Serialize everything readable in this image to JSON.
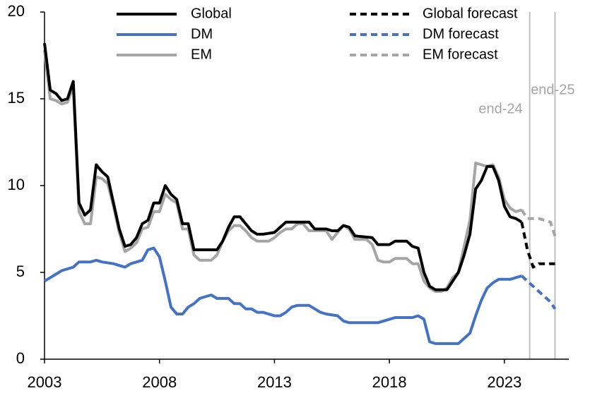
{
  "chart_data": {
    "type": "line",
    "xlim": [
      2003,
      2025.8
    ],
    "ylim": [
      0,
      20
    ],
    "xticks": [
      2003,
      2008,
      2013,
      2018,
      2023
    ],
    "yticks": [
      0,
      5,
      10,
      15,
      20
    ],
    "grid": false,
    "legend": "top",
    "series": [
      {
        "name": "Global",
        "color": "#000000",
        "style": "solid",
        "x": [
          2003,
          2003.25,
          2003.5,
          2003.75,
          2004,
          2004.25,
          2004.5,
          2004.75,
          2005,
          2005.25,
          2005.5,
          2005.75,
          2006,
          2006.25,
          2006.5,
          2006.75,
          2007,
          2007.25,
          2007.5,
          2007.75,
          2008,
          2008.25,
          2008.5,
          2008.75,
          2009,
          2009.25,
          2009.5,
          2010,
          2010.5,
          2010.75,
          2011,
          2011.25,
          2011.5,
          2011.75,
          2012,
          2012.25,
          2012.5,
          2013,
          2013.25,
          2013.5,
          2014,
          2014.5,
          2014.75,
          2015.25,
          2015.5,
          2015.75,
          2016,
          2016.25,
          2016.5,
          2017.25,
          2017.5,
          2018,
          2018.25,
          2018.75,
          2019,
          2019.25,
          2019.5,
          2019.75,
          2020,
          2020.5,
          2020.75,
          2021,
          2021.25,
          2021.5,
          2021.75,
          2022,
          2022.25,
          2022.5,
          2022.75,
          2023,
          2023.25,
          2023.5,
          2023.75
        ],
        "values": [
          18.2,
          15.5,
          15.3,
          14.9,
          15.0,
          16.0,
          9.0,
          8.3,
          8.6,
          11.2,
          10.8,
          10.5,
          9.0,
          7.5,
          6.5,
          6.6,
          7.0,
          7.8,
          8.0,
          9.0,
          9.0,
          10.0,
          9.5,
          9.2,
          7.8,
          7.8,
          6.3,
          6.3,
          6.3,
          6.8,
          7.6,
          8.2,
          8.2,
          7.8,
          7.4,
          7.2,
          7.2,
          7.3,
          7.6,
          7.9,
          7.9,
          7.9,
          7.5,
          7.5,
          7.4,
          7.4,
          7.7,
          7.6,
          7.1,
          7.0,
          6.6,
          6.6,
          6.8,
          6.8,
          6.5,
          6.4,
          5.0,
          4.2,
          4.0,
          4.0,
          4.5,
          5.0,
          6.0,
          7.2,
          9.8,
          10.3,
          11.1,
          11.1,
          10.3,
          8.8,
          8.2,
          8.1,
          7.9
        ]
      },
      {
        "name": "DM",
        "color": "#4472c4",
        "style": "solid",
        "x": [
          2003,
          2003.25,
          2003.5,
          2003.75,
          2004.25,
          2004.5,
          2005,
          2005.25,
          2005.5,
          2006,
          2006.25,
          2006.5,
          2006.75,
          2007.25,
          2007.5,
          2007.75,
          2008,
          2008.25,
          2008.5,
          2008.75,
          2009,
          2009.25,
          2009.5,
          2009.75,
          2010,
          2010.25,
          2010.5,
          2011,
          2011.25,
          2011.5,
          2011.75,
          2012,
          2012.25,
          2012.5,
          2013,
          2013.25,
          2013.5,
          2013.75,
          2014,
          2014.5,
          2015,
          2015.25,
          2015.75,
          2016,
          2016.25,
          2017.5,
          2018,
          2018.25,
          2019,
          2019.25,
          2019.5,
          2019.75,
          2020,
          2021,
          2021.25,
          2021.5,
          2021.75,
          2022,
          2022.25,
          2022.5,
          2022.75,
          2023.25,
          2023.5,
          2023.75
        ],
        "values": [
          4.5,
          4.7,
          4.9,
          5.1,
          5.3,
          5.6,
          5.6,
          5.7,
          5.6,
          5.5,
          5.4,
          5.3,
          5.5,
          5.7,
          6.3,
          6.4,
          5.9,
          4.5,
          3.0,
          2.6,
          2.6,
          3.0,
          3.2,
          3.5,
          3.6,
          3.7,
          3.5,
          3.5,
          3.2,
          3.2,
          2.9,
          2.9,
          2.7,
          2.7,
          2.5,
          2.5,
          2.7,
          3.0,
          3.1,
          3.1,
          2.7,
          2.6,
          2.5,
          2.2,
          2.1,
          2.1,
          2.3,
          2.4,
          2.4,
          2.5,
          2.3,
          1.0,
          0.9,
          0.9,
          1.2,
          1.5,
          2.5,
          3.4,
          4.1,
          4.4,
          4.6,
          4.6,
          4.7,
          4.8
        ]
      },
      {
        "name": "EM",
        "color": "#a5a5a5",
        "style": "solid",
        "x": [
          2003,
          2003.25,
          2003.5,
          2003.75,
          2004,
          2004.25,
          2004.5,
          2004.75,
          2005,
          2005.25,
          2005.5,
          2005.75,
          2006,
          2006.25,
          2006.5,
          2006.75,
          2007,
          2007.25,
          2007.5,
          2007.75,
          2008,
          2008.25,
          2008.5,
          2008.75,
          2009,
          2009.25,
          2009.5,
          2009.75,
          2010.25,
          2010.5,
          2010.75,
          2011,
          2011.25,
          2011.5,
          2011.75,
          2012,
          2012.25,
          2012.75,
          2013,
          2013.25,
          2013.5,
          2013.75,
          2014,
          2014.25,
          2014.5,
          2015.25,
          2015.5,
          2015.75,
          2016,
          2016.25,
          2016.5,
          2017,
          2017.25,
          2017.5,
          2017.75,
          2018,
          2018.25,
          2018.75,
          2019,
          2019.25,
          2019.5,
          2019.75,
          2020,
          2020.25,
          2020.5,
          2020.75,
          2021,
          2021.25,
          2021.5,
          2021.75,
          2022.25,
          2022.5,
          2022.75,
          2023,
          2023.25,
          2023.5,
          2023.75
        ],
        "values": [
          17.8,
          15.0,
          14.9,
          14.7,
          14.8,
          15.7,
          8.5,
          7.8,
          7.8,
          10.5,
          10.4,
          10.1,
          8.8,
          7.3,
          6.2,
          6.4,
          6.7,
          7.5,
          7.6,
          8.5,
          8.5,
          9.5,
          9.2,
          9.0,
          7.5,
          7.5,
          6.0,
          5.7,
          5.7,
          6.0,
          6.8,
          7.4,
          7.7,
          7.7,
          7.4,
          7.0,
          6.8,
          6.8,
          7.0,
          7.3,
          7.5,
          7.5,
          7.8,
          7.8,
          7.4,
          7.4,
          6.9,
          7.3,
          7.7,
          7.5,
          6.9,
          6.9,
          6.6,
          5.7,
          5.6,
          5.6,
          5.8,
          5.8,
          5.5,
          5.5,
          4.5,
          4.1,
          3.9,
          3.9,
          4.1,
          4.7,
          5.0,
          6.5,
          8.0,
          11.3,
          11.1,
          11.2,
          10.5,
          9.2,
          8.7,
          8.5,
          8.6
        ]
      },
      {
        "name": "Global forecast",
        "color": "#000000",
        "style": "dashed",
        "x": [
          2023.75,
          2024,
          2024.25,
          2024.5,
          2025.2
        ],
        "values": [
          7.9,
          6.3,
          5.3,
          5.5,
          5.5
        ]
      },
      {
        "name": "DM forecast",
        "color": "#4472c4",
        "style": "dashed",
        "x": [
          2023.75,
          2024,
          2024.5,
          2025,
          2025.2
        ],
        "values": [
          4.8,
          4.5,
          3.9,
          3.3,
          2.9
        ]
      },
      {
        "name": "EM forecast",
        "color": "#a5a5a5",
        "style": "dashed",
        "x": [
          2023.75,
          2024,
          2024.5,
          2025,
          2025.2
        ],
        "values": [
          8.6,
          8.1,
          8.1,
          7.9,
          7.1
        ]
      }
    ],
    "annotations": [
      {
        "text": "end-24",
        "x": 2024.1,
        "color": "#bfbfbf"
      },
      {
        "text": "end-25",
        "x": 2025.2,
        "color": "#bfbfbf"
      }
    ]
  }
}
